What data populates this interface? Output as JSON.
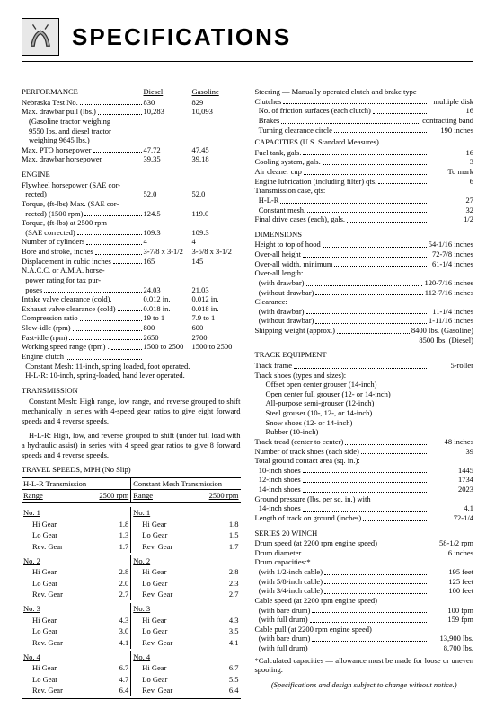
{
  "title": "SPECIFICATIONS",
  "perf": {
    "heading": "PERFORMANCE",
    "col_diesel": "Diesel",
    "col_gas": "Gasoline",
    "rows": [
      {
        "l": "Nebraska Test No.",
        "d": "830",
        "g": "829"
      },
      {
        "l": "Max. drawbar pull (lbs.)",
        "d": "10,283",
        "g": "10,093"
      }
    ],
    "note1": "(Gasoline tractor weighing",
    "note2": "9550 lbs. and diesel tractor",
    "note3": "weighing 9645 lbs.)",
    "rows2": [
      {
        "l": "Max. PTO horsepower",
        "d": "47.72",
        "g": "47.45"
      },
      {
        "l": "Max. drawbar horsepower",
        "d": "39.35",
        "g": "39.18"
      }
    ]
  },
  "engine": {
    "heading": "ENGINE",
    "r": [
      {
        "l": "Flywheel horsepower (SAE cor-",
        "sub": true
      },
      {
        "l": "  rected)",
        "d": "52.0",
        "g": "52.0"
      },
      {
        "l": "Torque, (ft-lbs) Max. (SAE cor-",
        "sub": true
      },
      {
        "l": "  rected) (1500 rpm)",
        "d": "124.5",
        "g": "119.0"
      },
      {
        "l": "Torque, (ft-lbs) at 2500 rpm",
        "sub": true
      },
      {
        "l": "  (SAE corrected)",
        "d": "109.3",
        "g": "109.3"
      },
      {
        "l": "Number of cylinders",
        "d": "4",
        "g": "4"
      },
      {
        "l": "Bore and stroke, inches",
        "d": "3-7/8 x 3-1/2",
        "g": "3-5/8 x 3-1/2"
      },
      {
        "l": "Displacement in cubic inches",
        "d": "165",
        "g": "145"
      },
      {
        "l": "N.A.C.C. or A.M.A. horse-",
        "sub": true
      },
      {
        "l": "  power rating for tax pur-",
        "sub": true
      },
      {
        "l": "  poses",
        "d": "24.03",
        "g": "21.03"
      },
      {
        "l": "Intake valve clearance (cold).",
        "d": "0.012 in.",
        "g": "0.012 in."
      },
      {
        "l": "Exhaust valve clearance (cold)",
        "d": "0.018 in.",
        "g": "0.018 in."
      },
      {
        "l": "Compression ratio",
        "d": "19 to 1",
        "g": "7.9 to 1"
      },
      {
        "l": "Slow-idle (rpm)",
        "d": "800",
        "g": "600"
      },
      {
        "l": "Fast-idle (rpm)",
        "d": "2650",
        "g": "2700"
      },
      {
        "l": "Working speed range (rpm) .",
        "d": "1500 to 2500",
        "g": "1500 to 2500"
      },
      {
        "l": "Engine clutch",
        "d": "",
        "g": ""
      }
    ],
    "clutch1": "  Constant Mesh: 11-inch, spring loaded, foot operated.",
    "clutch2": "  H-L-R: 10-inch, spring-loaded, hand lever operated."
  },
  "trans": {
    "heading": "TRANSMISSION",
    "p1": "Constant Mesh: High range, low range, and reverse grouped to shift mechanically in series with 4-speed gear ratios to give eight forward speeds and 4 reverse speeds.",
    "p2": "H-L-R: High, low, and reverse grouped to shift (under full load with a hydraulic assist) in series with 4 speed gear ratios to give 8 forward speeds and 4 reverse speeds."
  },
  "travel": {
    "heading": "TRAVEL SPEEDS, MPH (No Slip)",
    "left_h": "H-L-R Transmission",
    "right_h": "Constant Mesh Transmission",
    "range": "Range",
    "rpm": "2500 rpm",
    "groups": [
      {
        "no": "No. 1",
        "rows": [
          [
            "Hi Gear",
            "1.8",
            "Hi Gear",
            "1.8"
          ],
          [
            "Lo Gear",
            "1.3",
            "Lo Gear",
            "1.5"
          ],
          [
            "Rev. Gear",
            "1.7",
            "Rev. Gear",
            "1.7"
          ]
        ]
      },
      {
        "no": "No. 2",
        "rows": [
          [
            "Hi Gear",
            "2.8",
            "Hi Gear",
            "2.8"
          ],
          [
            "Lo Gear",
            "2.0",
            "Lo Gear",
            "2.3"
          ],
          [
            "Rev. Gear",
            "2.7",
            "Rev. Gear",
            "2.7"
          ]
        ]
      },
      {
        "no": "No. 3",
        "rows": [
          [
            "Hi Gear",
            "4.3",
            "Hi Gear",
            "4.3"
          ],
          [
            "Lo Gear",
            "3.0",
            "Lo Gear",
            "3.5"
          ],
          [
            "Rev. Gear",
            "4.1",
            "Rev. Gear",
            "4.1"
          ]
        ]
      },
      {
        "no": "No. 4",
        "rows": [
          [
            "Hi Gear",
            "6.7",
            "Hi Gear",
            "6.7"
          ],
          [
            "Lo Gear",
            "4.7",
            "Lo Gear",
            "5.5"
          ],
          [
            "Rev. Gear",
            "6.4",
            "Rev. Gear",
            "6.4"
          ]
        ]
      }
    ]
  },
  "steering": {
    "l1": "Steering — Manually operated clutch and brake type",
    "l2": "Clutches",
    "v2": "multiple disk",
    "l3": "  No. of friction surfaces (each clutch)",
    "v3": "16",
    "l4": "  Brakes",
    "v4": "contracting band",
    "l5": "  Turning clearance circle",
    "v5": "190 inches"
  },
  "cap": {
    "heading": "CAPACITIES (U.S. Standard Measures)",
    "rows": [
      {
        "l": "Fuel tank, gals.",
        "v": "16"
      },
      {
        "l": "Cooling system, gals.",
        "v": "3"
      },
      {
        "l": "Air cleaner cup",
        "v": "To mark"
      },
      {
        "l": "Engine lubrication (including filter) qts.",
        "v": "6"
      },
      {
        "l": "Transmission case, qts:",
        "v": ""
      },
      {
        "l": "  H-L-R",
        "v": "27"
      },
      {
        "l": "  Constant mesh.",
        "v": "32"
      },
      {
        "l": "Final drive cases (each), gals.",
        "v": "1/2"
      }
    ]
  },
  "dim": {
    "heading": "DIMENSIONS",
    "rows": [
      {
        "l": "Height to top of hood",
        "v": "54-1/16 inches"
      },
      {
        "l": "Over-all height",
        "v": "72-7/8 inches"
      },
      {
        "l": "Over-all width, minimum",
        "v": "61-1/4 inches"
      },
      {
        "l": "Over-all length:",
        "v": ""
      },
      {
        "l": "  (with drawbar)",
        "v": "120-7/16 inches"
      },
      {
        "l": "  (without drawbar)",
        "v": "112-7/16 inches"
      },
      {
        "l": "Clearance:",
        "v": ""
      },
      {
        "l": "  (with drawbar)",
        "v": "11-1/4 inches"
      },
      {
        "l": "  (without drawbar)",
        "v": "1-11/16 inches"
      },
      {
        "l": "Shipping weight (approx.)",
        "v": "8400 lbs. (Gasoline)"
      },
      {
        "l": "",
        "v": "8500 lbs. (Diesel)"
      }
    ]
  },
  "track": {
    "heading": "TRACK EQUIPMENT",
    "rows1": [
      {
        "l": "Track frame",
        "v": "5-roller"
      },
      {
        "l": "Track shoes (types and sizes):",
        "v": ""
      }
    ],
    "types": [
      "Offset open center grouser (14-inch)",
      "Open center full grouser (12- or 14-inch)",
      "All-purpose semi-grouser (12-inch)",
      "Steel grouser (10-, 12-, or 14-inch)",
      "Snow shoes (12- or 14-inch)",
      "Rubber (10-inch)"
    ],
    "rows2": [
      {
        "l": "Track tread (center to center)",
        "v": "48 inches"
      },
      {
        "l": "Number of track shoes (each side)",
        "v": "39"
      },
      {
        "l": "Total ground contact area (sq. in.):",
        "v": ""
      },
      {
        "l": "  10-inch shoes",
        "v": "1445"
      },
      {
        "l": "  12-inch shoes",
        "v": "1734"
      },
      {
        "l": "  14-inch shoes",
        "v": "2023"
      },
      {
        "l": "Ground pressure (lbs. per sq. in.) with",
        "v": ""
      },
      {
        "l": "  14-inch shoes",
        "v": "4.1"
      },
      {
        "l": "Length of track on ground (inches)",
        "v": "72-1/4"
      }
    ]
  },
  "winch": {
    "heading": "SERIES 20 WINCH",
    "rows": [
      {
        "l": "Drum speed (at 2200 rpm engine speed)",
        "v": "58-1/2 rpm"
      },
      {
        "l": "Drum diameter",
        "v": "6 inches"
      },
      {
        "l": "Drum capacities:*",
        "v": ""
      },
      {
        "l": "  (with 1/2-inch cable)",
        "v": "195 feet"
      },
      {
        "l": "  (with 5/8-inch cable)",
        "v": "125 feet"
      },
      {
        "l": "  (with 3/4-inch cable)",
        "v": "100 feet"
      },
      {
        "l": "Cable speed (at 2200 rpm engine speed)",
        "v": ""
      },
      {
        "l": "  (with bare drum)",
        "v": "100 fpm"
      },
      {
        "l": "  (with full drum)",
        "v": "159 fpm"
      },
      {
        "l": "Cable pull (at 2200 rpm engine speed)",
        "v": ""
      },
      {
        "l": "  (with bare drum)",
        "v": "13,900 lbs."
      },
      {
        "l": "  (with full drum)",
        "v": "8,700 lbs."
      }
    ],
    "note": "*Calculated capacities — allowance must be made for loose or uneven spooling."
  },
  "footer": "(Specifications and design subject to change without notice.)"
}
